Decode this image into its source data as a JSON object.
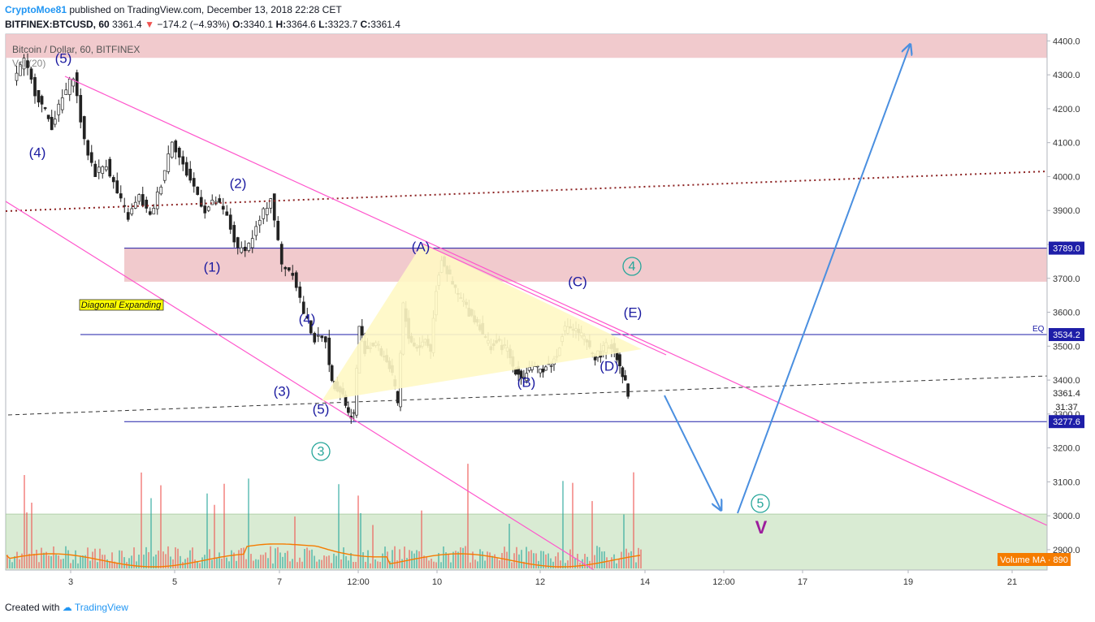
{
  "header": {
    "author": "CryptoMoe81",
    "published": "published on TradingView.com, December 13, 2018 22:28 CET",
    "symbol_line": "BITFINEX:BTCUSD, 60",
    "last": "3361.4",
    "arrow": "▼",
    "change": "−174.2 (−4.93%)",
    "o_label": "O:",
    "o": "3340.1",
    "h_label": "H:",
    "h": "3364.6",
    "l_label": "L:",
    "l": "3323.7",
    "c_label": "C:",
    "c": "3361.4"
  },
  "footer": {
    "created_with": "Created with",
    "brand": "TradingView"
  },
  "colors": {
    "up": "#26a69a",
    "down": "#ef5350",
    "wave_label": "#1a1aa0",
    "cycle_label": "#26a69a",
    "channel": "#ff55cc",
    "resistance_zone": "#f0c4c8",
    "support_zone": "#d5e9cf",
    "triangle": "#fff8c4",
    "projection_arrow": "#4a8fe0",
    "ma": "#f57c00"
  },
  "chart_data": {
    "type": "line",
    "title": "Bitcoin / Dollar, 60, BITFINEX",
    "subtitle": "Vol (20)",
    "xlabel": "",
    "ylabel": "",
    "ylim": [
      2840,
      4420
    ],
    "grid": false,
    "x_ticks": [
      "3",
      "5",
      "7",
      "12:00",
      "10",
      "12",
      "14",
      "12:00",
      "17",
      "19",
      "21"
    ],
    "y_ticks": [
      4400,
      4300,
      4200,
      4100,
      4000,
      3900,
      3800,
      3700,
      3600,
      3500,
      3400,
      3300,
      3200,
      3100,
      3000,
      2900,
      2800
    ],
    "y_tick_labels": [
      "4400.0",
      "4300.0",
      "4200.0",
      "4100.0",
      "4000.0",
      "3900.0",
      "3800.0",
      "3700.0",
      "3600.0",
      "3500.0",
      "3400.0",
      "3300.0",
      "3200.0",
      "3100.0",
      "3000.0",
      "2900.0",
      "2800.0"
    ],
    "series": [
      {
        "x": [
          0,
          0.05,
          0.1,
          0.15,
          0.2,
          0.25,
          0.32,
          0.34,
          0.37,
          0.42,
          0.46,
          0.5,
          0.55,
          0.59,
          0.62,
          0.63,
          0.66,
          0.72,
          0.75,
          0.78,
          0.82,
          0.84,
          0.88,
          0.92,
          0.95,
          0.98,
          1.0,
          1.04,
          1.07,
          1.08,
          1.1,
          1.12,
          1.15,
          1.17,
          1.2
        ],
        "values": [
          4320,
          4350,
          4240,
          4150,
          4230,
          4290,
          4160,
          3960,
          4020,
          4000,
          3880,
          3990,
          3880,
          3960,
          3900,
          3940,
          3880,
          3790,
          3740,
          3730,
          3740,
          3720,
          3820,
          3840,
          3720,
          3620,
          3460,
          3370,
          3430,
          3280,
          3520,
          3440,
          3500,
          3460,
          3510
        ]
      }
    ],
    "price_path": [
      [
        2,
        4290
      ],
      [
        4,
        4340
      ],
      [
        6,
        4250
      ],
      [
        9,
        4150
      ],
      [
        11,
        4230
      ],
      [
        13,
        4300
      ],
      [
        15,
        4100
      ],
      [
        17,
        4010
      ],
      [
        19,
        4040
      ],
      [
        21,
        3950
      ],
      [
        23,
        3880
      ],
      [
        25,
        3940
      ],
      [
        27,
        3880
      ],
      [
        29,
        3980
      ],
      [
        31,
        4110
      ],
      [
        33,
        4030
      ],
      [
        35,
        3970
      ],
      [
        37,
        3900
      ],
      [
        39,
        3930
      ],
      [
        41,
        3880
      ],
      [
        43,
        3780
      ],
      [
        45,
        3800
      ],
      [
        47,
        3870
      ],
      [
        49,
        3940
      ],
      [
        51,
        3740
      ],
      [
        53,
        3720
      ],
      [
        55,
        3600
      ],
      [
        57,
        3520
      ],
      [
        59,
        3520
      ],
      [
        60,
        3390
      ],
      [
        61,
        3380
      ],
      [
        62,
        3360
      ],
      [
        63,
        3300
      ],
      [
        64,
        3300
      ],
      [
        65,
        3560
      ],
      [
        66,
        3490
      ],
      [
        67,
        3500
      ],
      [
        68,
        3510
      ],
      [
        69,
        3480
      ],
      [
        70,
        3460
      ],
      [
        71,
        3410
      ],
      [
        72,
        3330
      ],
      [
        73,
        3620
      ],
      [
        74,
        3530
      ],
      [
        75,
        3500
      ],
      [
        76,
        3500
      ],
      [
        77,
        3520
      ],
      [
        78,
        3490
      ],
      [
        79,
        3670
      ],
      [
        80,
        3760
      ],
      [
        81,
        3720
      ],
      [
        82,
        3680
      ],
      [
        83,
        3650
      ],
      [
        84,
        3630
      ],
      [
        85,
        3600
      ],
      [
        86,
        3580
      ],
      [
        87,
        3560
      ],
      [
        88,
        3520
      ],
      [
        89,
        3500
      ],
      [
        90,
        3510
      ],
      [
        91,
        3500
      ],
      [
        92,
        3490
      ],
      [
        93,
        3440
      ],
      [
        94,
        3420
      ],
      [
        95,
        3410
      ],
      [
        96,
        3440
      ],
      [
        97,
        3430
      ],
      [
        98,
        3430
      ],
      [
        99,
        3440
      ],
      [
        100,
        3450
      ],
      [
        101,
        3470
      ],
      [
        102,
        3540
      ],
      [
        103,
        3560
      ],
      [
        104,
        3550
      ],
      [
        105,
        3540
      ],
      [
        106,
        3520
      ],
      [
        107,
        3490
      ],
      [
        108,
        3470
      ],
      [
        109,
        3480
      ],
      [
        110,
        3500
      ],
      [
        111,
        3500
      ],
      [
        112,
        3470
      ],
      [
        113,
        3420
      ],
      [
        114,
        3360
      ]
    ],
    "volume_ma_label": "Volume MA",
    "volume_ma_value": "890",
    "current_price_label": "3361.4",
    "countdown_label": "31:37",
    "levels": [
      {
        "price": 3789.0,
        "label": "3789.0"
      },
      {
        "price": 3534.2,
        "label": "3534.2",
        "tag": "EQ"
      },
      {
        "price": 3277.6,
        "label": "3277.6"
      }
    ],
    "zones": [
      {
        "name": "top-resistance",
        "from": 4350,
        "to": 4420
      },
      {
        "name": "mid-resistance",
        "from": 3690,
        "to": 3790
      },
      {
        "name": "support",
        "from": 2840,
        "to": 3005
      }
    ],
    "annotations": {
      "pattern_label": "Diagonal Expanding",
      "waves": [
        {
          "text": "(5)",
          "price": 4340,
          "t": 4
        },
        {
          "text": "(4)",
          "price": 4200,
          "t": 2
        },
        {
          "text": "(2)",
          "price": 3930,
          "t": 43
        },
        {
          "text": "(1)",
          "price": 3700,
          "t": 38
        },
        {
          "text": "(4)",
          "price": 3530,
          "t": 55
        },
        {
          "text": "(3)",
          "price": 3320,
          "t": 50
        },
        {
          "text": "(5)",
          "price": 3255,
          "t": 58
        },
        {
          "text": "(A)",
          "price": 3770,
          "t": 77
        },
        {
          "text": "(C)",
          "price": 3610,
          "t": 106
        },
        {
          "text": "(E)",
          "price": 3550,
          "t": 116
        },
        {
          "text": "(D)",
          "price": 3390,
          "t": 112
        },
        {
          "text": "(B)",
          "price": 3340,
          "t": 97
        }
      ],
      "cycle_waves": [
        {
          "text": "4",
          "price": 3700,
          "t": 118
        },
        {
          "text": "3",
          "price": 3170,
          "t": 58
        },
        {
          "text": "5",
          "price": 2960,
          "t": 142
        }
      ],
      "target_label": "V"
    }
  }
}
